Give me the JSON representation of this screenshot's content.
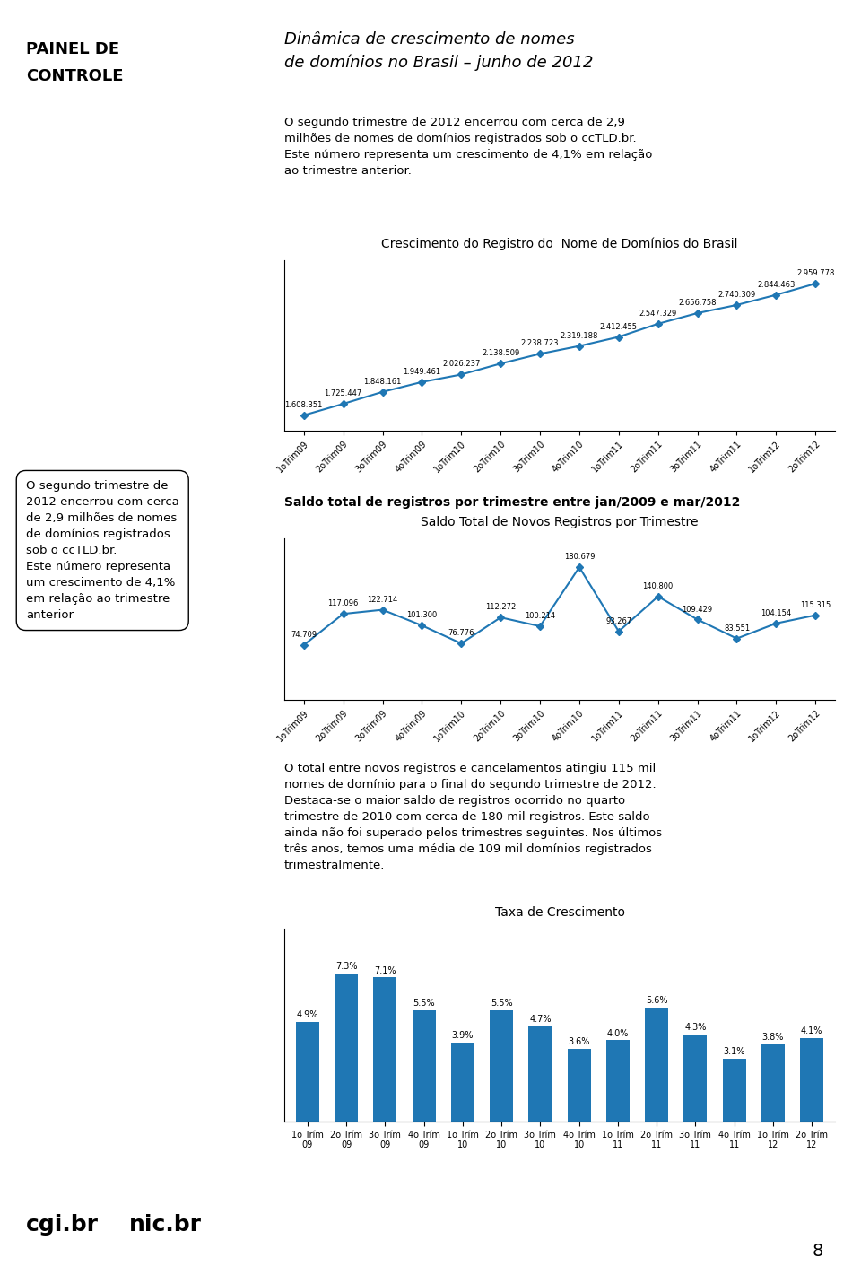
{
  "title": "Dinâmica de crescimento de nomes\nde domínios no Brasil – junho de 2012",
  "annotations": [
    "PAINEL DE",
    "CONTROLE",
    "O segundo trimestre de 2012 encerrou com cerca de 2,9\nmilhões de nomes de domínios registrados sob o ccTLD.br.\nEste número representa um crescimento de 4,1% em relação\nao trimestre anterior.",
    "O segundo trimestre de\n2012 encerrou com cerca\nde 2,9 milhões de nomes\nde domínios registrados\nsob o ccTLD.br.\nEste número representa\num crescimento de 4,1%\nem relação ao trimestre\nanterior",
    "Saldo total de registros por trimestre entre jan/2009 e mar/2012",
    "O total entre novos registros e cancelamentos atingiu 115 mil\nnomes de domínio para o final do segundo trimestre de 2012.\nDestaca-se o maior saldo de registros ocorrido no quarto\ntrimestre de 2010 com cerca de 180 mil registros. Este saldo\nainda não foi superado pelos trimestres seguintes. Nos últimos\ntrês anos, temos uma média de 109 mil domínios registrados\ntrimestralmente.",
    "cgi.br",
    "nic.br",
    "8"
  ],
  "chart_data": [
    {
      "type": "line",
      "title": "Crescimento do Registro do  Nome de Domínios do Brasil",
      "categories": [
        "1oTrim09",
        "2oTrim09",
        "3oTrim09",
        "4oTrim09",
        "1oTrim10",
        "2oTrim10",
        "3oTrim10",
        "4oTrim10",
        "1oTrim11",
        "2oTrim11",
        "3oTrim11",
        "4oTrim11",
        "1oTrim12",
        "2oTrim12"
      ],
      "values": [
        1608351,
        1725447,
        1848161,
        1949461,
        2026237,
        2138509,
        2238723,
        2319188,
        2412455,
        2547329,
        2656758,
        2740309,
        2844463,
        2959778
      ],
      "value_labels": [
        "1.608.351",
        "1.725.447",
        "1.848.161",
        "1.949.461",
        "2.026.237",
        "2.138.509",
        "2.238.723",
        "2.319.188",
        "2.412.455",
        "2.547.329",
        "2.656.758",
        "2.740.309",
        "2.844.463",
        "2.959.778"
      ],
      "ylim": [
        1450000,
        3200000
      ],
      "marker": "diamond",
      "data_labels": true,
      "tick_labels": "x",
      "grid": false
    },
    {
      "type": "line",
      "title": "Saldo Total de Novos Registros por Trimestre",
      "categories": [
        "1oTrim09",
        "2oTrim09",
        "3oTrim09",
        "4oTrim09",
        "1oTrim10",
        "2oTrim10",
        "3oTrim10",
        "4oTrim10",
        "1oTrim11",
        "2oTrim11",
        "3oTrim11",
        "4oTrim11",
        "1oTrim12",
        "2oTrim12"
      ],
      "values": [
        74709,
        117096,
        122714,
        101300,
        76776,
        112272,
        100214,
        180679,
        93267,
        140800,
        109429,
        83551,
        104154,
        115315
      ],
      "value_labels": [
        "74.709",
        "117.096",
        "122.714",
        "101.300",
        "76.776",
        "112.272",
        "100.214",
        "180.679",
        "93.267",
        "140.800",
        "109.429",
        "83.551",
        "104.154",
        "115.315"
      ],
      "ylim": [
        0,
        220000
      ],
      "marker": "diamond",
      "data_labels": true,
      "tick_labels": "x",
      "grid": false
    },
    {
      "type": "bar",
      "title": "Taxa de Crescimento",
      "categories": [
        "1o Trím\n09",
        "2o Trím\n09",
        "3o Trím\n09",
        "4o Trím\n09",
        "1o Trím\n10",
        "2o Trím\n10",
        "3o Trím\n10",
        "4o Trím\n10",
        "1o Trím\n11",
        "2o Trím\n11",
        "3o Trím\n11",
        "4o Trím\n11",
        "1o Trím\n12",
        "2o Trím\n12"
      ],
      "values": [
        4.9,
        7.3,
        7.1,
        5.5,
        3.9,
        5.5,
        4.7,
        3.6,
        4.0,
        5.6,
        4.3,
        3.1,
        3.8,
        4.1
      ],
      "value_labels": [
        "4.9%",
        "7.3%",
        "7.1%",
        "5.5%",
        "3.9%",
        "5.5%",
        "4.7%",
        "3.6%",
        "4.0%",
        "5.6%",
        "4.3%",
        "3.1%",
        "3.8%",
        "4.1%"
      ],
      "ylim": [
        0,
        9.5
      ],
      "data_labels": true,
      "tick_labels": "x",
      "grid": false
    }
  ]
}
